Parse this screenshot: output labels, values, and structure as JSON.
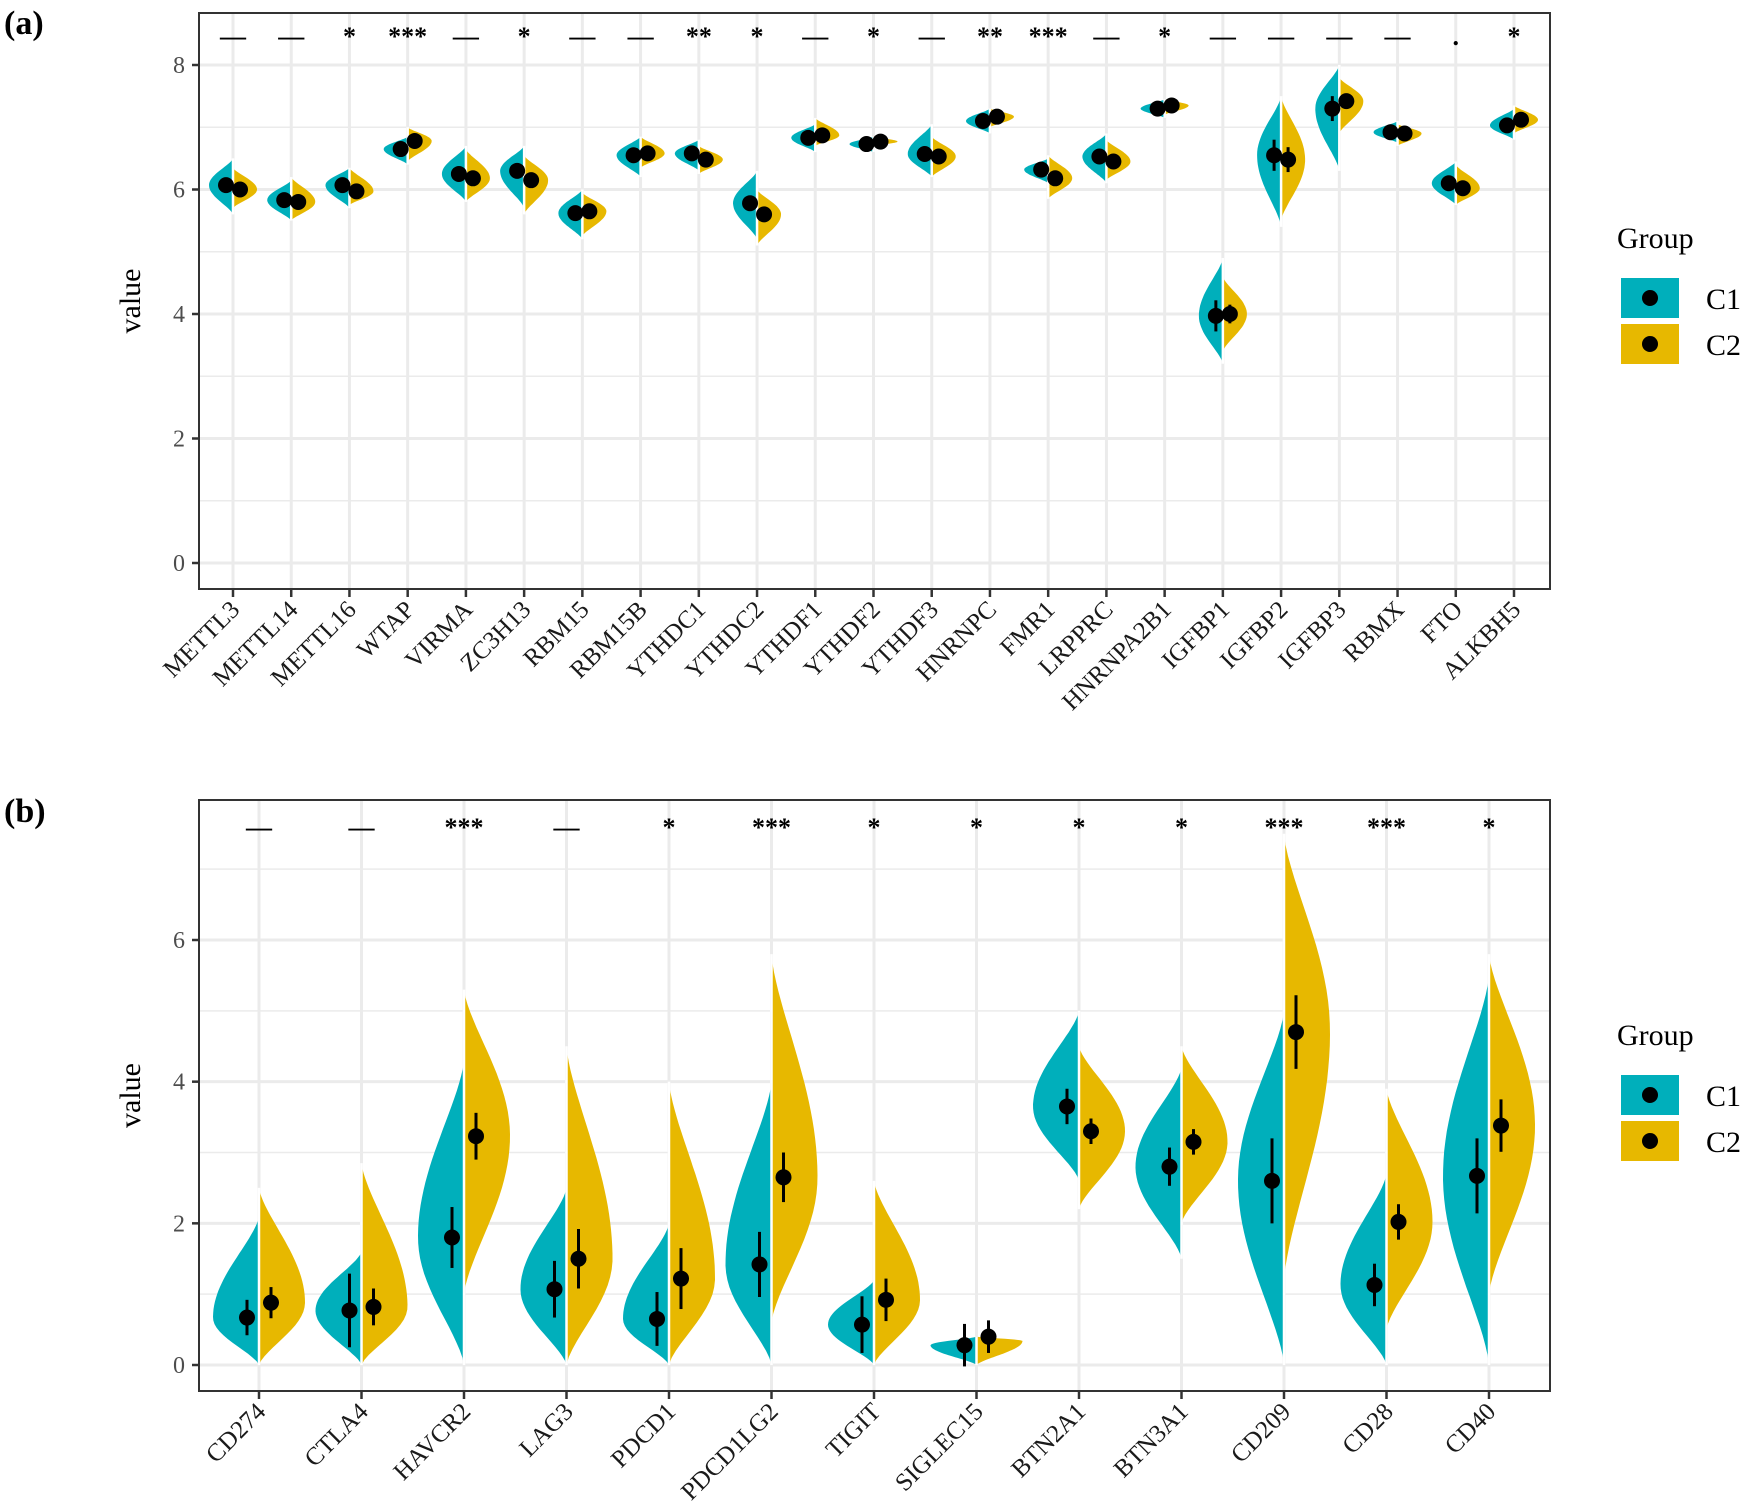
{
  "colors": {
    "C1": "#00AFBB",
    "C2": "#E7B800",
    "grid": "#ebebeb"
  },
  "chart_data": [
    {
      "panel_label": "(a)",
      "type": "violin",
      "ylabel": "value",
      "ylim": [
        -0.45,
        8.85
      ],
      "yticks": [
        0,
        2,
        4,
        6,
        8
      ],
      "ytick_labels": [
        "0",
        "2",
        "4",
        "6",
        "8"
      ],
      "grid": true,
      "legend": {
        "title": "Group",
        "entries": [
          "C1",
          "C2"
        ],
        "placement": "right"
      },
      "categories": [
        "METTL3",
        "METTL14",
        "METTL16",
        "WTAP",
        "VIRMA",
        "ZC3H13",
        "RBM15",
        "RBM15B",
        "YTHDC1",
        "YTHDC2",
        "YTHDF1",
        "YTHDF2",
        "YTHDF3",
        "HNRNPC",
        "FMR1",
        "LRPPRC",
        "HNRNPA2B1",
        "IGFBP1",
        "IGFBP2",
        "IGFBP3",
        "RBMX",
        "FTO",
        "ALKBH5"
      ],
      "significance": [
        "—",
        "—",
        "*",
        "***",
        "—",
        "*",
        "—",
        "—",
        "**",
        "*",
        "—",
        "*",
        "—",
        "**",
        "***",
        "—",
        "*",
        "—",
        "—",
        "—",
        "—",
        ".",
        "*"
      ],
      "series": [
        {
          "name": "C1",
          "median": [
            6.07,
            5.83,
            6.07,
            6.65,
            6.25,
            6.3,
            5.62,
            6.55,
            6.58,
            5.78,
            6.83,
            6.73,
            6.57,
            7.1,
            6.32,
            6.53,
            7.3,
            3.97,
            6.55,
            7.3,
            6.92,
            6.1,
            7.03
          ],
          "err": [
            0.06,
            0.05,
            0.06,
            0.04,
            0.08,
            0.1,
            0.05,
            0.04,
            0.05,
            0.1,
            0.05,
            0.04,
            0.06,
            0.04,
            0.05,
            0.06,
            0.04,
            0.25,
            0.25,
            0.2,
            0.04,
            0.05,
            0.04
          ],
          "min": [
            5.6,
            5.5,
            5.7,
            6.4,
            5.8,
            5.7,
            5.2,
            6.2,
            6.3,
            5.2,
            6.6,
            6.6,
            6.2,
            6.9,
            6.1,
            6.1,
            7.15,
            3.2,
            5.4,
            6.3,
            6.75,
            5.75,
            6.8
          ],
          "max": [
            6.5,
            6.15,
            6.35,
            6.85,
            6.7,
            6.7,
            6.0,
            6.85,
            6.8,
            6.3,
            7.05,
            6.85,
            7.05,
            7.3,
            6.5,
            6.9,
            7.45,
            4.9,
            7.5,
            8.0,
            7.1,
            6.45,
            7.3
          ]
        },
        {
          "name": "C2",
          "median": [
            6.0,
            5.8,
            5.97,
            6.78,
            6.18,
            6.15,
            5.65,
            6.58,
            6.48,
            5.6,
            6.87,
            6.77,
            6.53,
            7.17,
            6.18,
            6.45,
            7.35,
            4.0,
            6.48,
            7.42,
            6.9,
            6.02,
            7.12
          ],
          "err": [
            0.05,
            0.05,
            0.05,
            0.04,
            0.07,
            0.08,
            0.05,
            0.04,
            0.05,
            0.08,
            0.04,
            0.04,
            0.05,
            0.04,
            0.05,
            0.05,
            0.04,
            0.15,
            0.2,
            0.1,
            0.04,
            0.05,
            0.04
          ],
          "min": [
            5.7,
            5.5,
            5.75,
            6.45,
            5.8,
            5.6,
            5.25,
            6.35,
            6.25,
            5.1,
            6.7,
            6.7,
            6.2,
            7.0,
            5.85,
            6.15,
            7.2,
            3.4,
            5.5,
            6.9,
            6.7,
            5.75,
            6.9
          ],
          "max": [
            6.35,
            6.2,
            6.35,
            7.0,
            6.65,
            6.55,
            5.95,
            6.85,
            6.7,
            6.0,
            7.15,
            6.85,
            6.85,
            7.3,
            6.55,
            6.8,
            7.45,
            4.6,
            7.5,
            7.8,
            7.05,
            6.4,
            7.35
          ]
        }
      ]
    },
    {
      "panel_label": "(b)",
      "type": "violin",
      "ylabel": "value",
      "ylim": [
        -0.4,
        7.9
      ],
      "yticks": [
        0,
        2,
        4,
        6
      ],
      "ytick_labels": [
        "0",
        "2",
        "4",
        "6"
      ],
      "grid": true,
      "legend": {
        "title": "Group",
        "entries": [
          "C1",
          "C2"
        ],
        "placement": "right"
      },
      "categories": [
        "CD274",
        "CTLA4",
        "HAVCR2",
        "LAG3",
        "PDCD1",
        "PDCD1LG2",
        "TIGIT",
        "SIGLEC15",
        "BTN2A1",
        "BTN3A1",
        "CD209",
        "CD28",
        "CD40"
      ],
      "significance": [
        "—",
        "—",
        "***",
        "—",
        "*",
        "***",
        "*",
        "*",
        "*",
        "*",
        "***",
        "***",
        "*"
      ],
      "series": [
        {
          "name": "C1",
          "median": [
            0.67,
            0.77,
            1.8,
            1.07,
            0.65,
            1.42,
            0.57,
            0.28,
            3.65,
            2.8,
            2.6,
            1.13,
            2.67
          ],
          "err": [
            0.25,
            0.52,
            0.43,
            0.4,
            0.38,
            0.46,
            0.4,
            0.3,
            0.25,
            0.27,
            0.6,
            0.3,
            0.53
          ],
          "min": [
            0,
            0,
            0,
            0,
            0,
            0,
            0,
            0,
            2.6,
            1.5,
            0,
            0,
            0
          ],
          "max": [
            2.1,
            1.6,
            4.3,
            2.5,
            2.0,
            4.0,
            1.2,
            0.4,
            5.0,
            4.2,
            5.0,
            2.7,
            5.5
          ]
        },
        {
          "name": "C2",
          "median": [
            0.88,
            0.82,
            3.23,
            1.5,
            1.22,
            2.65,
            0.92,
            0.4,
            3.3,
            3.15,
            4.7,
            2.02,
            3.38
          ],
          "err": [
            0.22,
            0.26,
            0.33,
            0.42,
            0.43,
            0.35,
            0.3,
            0.23,
            0.18,
            0.18,
            0.52,
            0.25,
            0.37
          ],
          "min": [
            0,
            0,
            1.0,
            0,
            0,
            0.6,
            0,
            0,
            2.2,
            2.0,
            1.2,
            0.5,
            1.0
          ],
          "max": [
            2.5,
            2.85,
            5.3,
            4.5,
            4.0,
            5.8,
            2.6,
            0.4,
            4.5,
            4.5,
            7.5,
            3.9,
            5.8
          ]
        }
      ]
    }
  ]
}
